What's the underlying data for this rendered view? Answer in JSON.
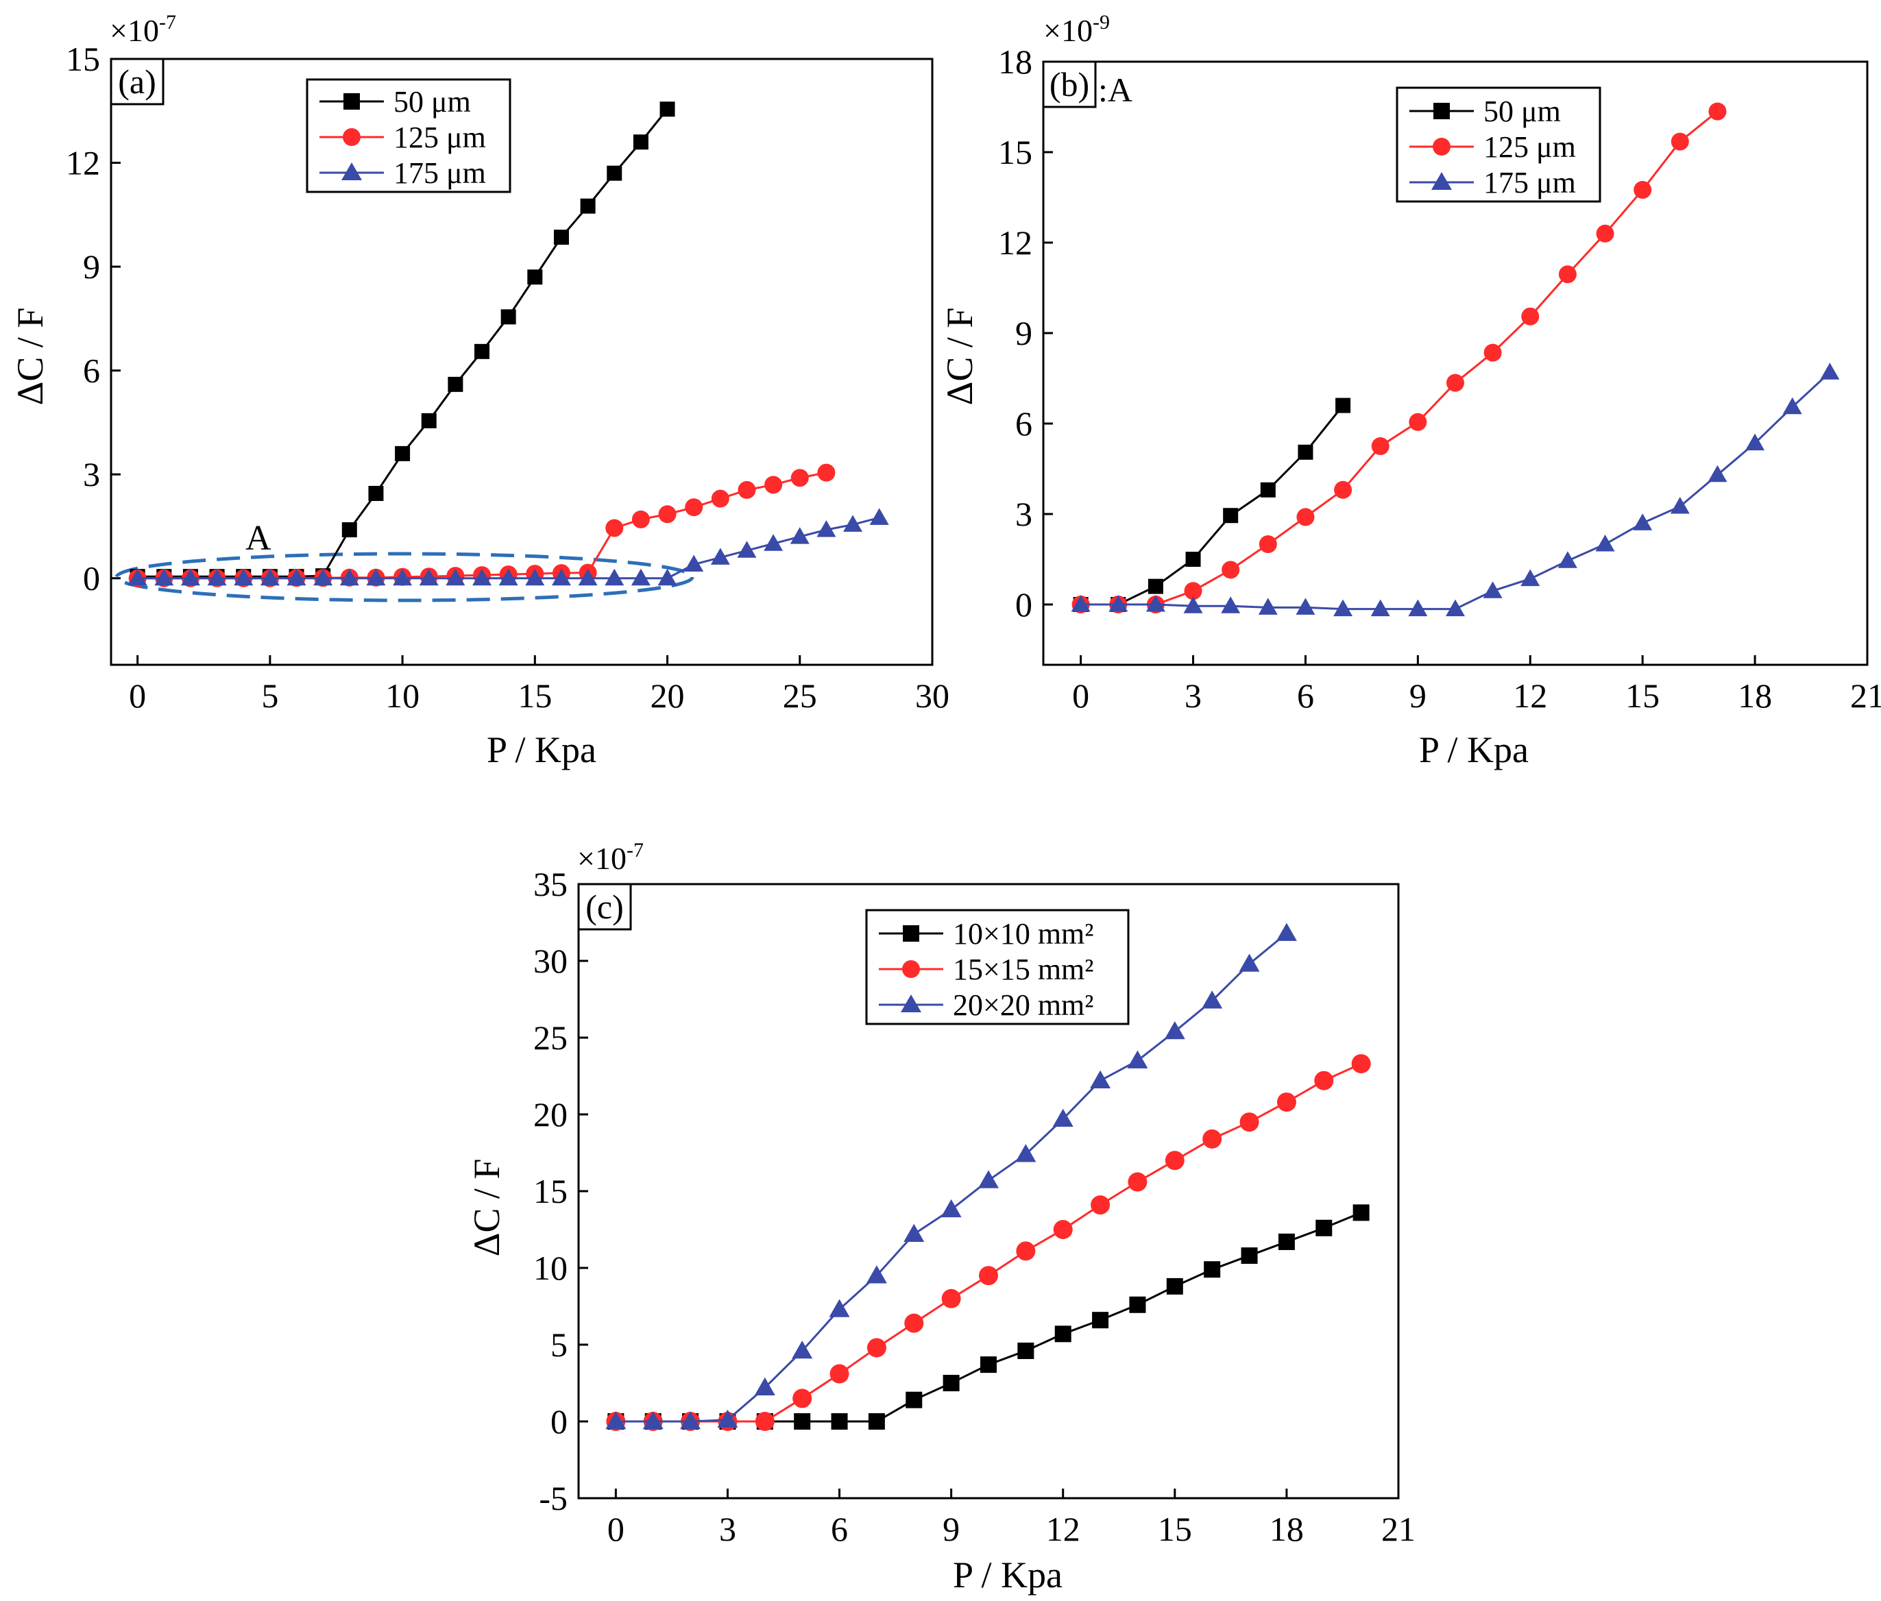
{
  "chart_data": [
    {
      "id": "a",
      "type": "line",
      "panel_label": "(a)",
      "xlabel": "P / Kpa",
      "ylabel": "ΔC / F",
      "y_multiplier_base": "×10",
      "y_multiplier_exp": "-7",
      "xlim": [
        -1,
        30
      ],
      "ylim": [
        -2.5,
        15
      ],
      "xticks": [
        0,
        5,
        10,
        15,
        20,
        25,
        30
      ],
      "yticks": [
        0,
        3,
        6,
        9,
        12,
        15
      ],
      "annotation": "A",
      "legend": {
        "position": "top-center"
      },
      "series": [
        {
          "name": "50 μm",
          "color": "#000000",
          "marker": "square",
          "x": [
            0,
            1,
            2,
            3,
            4,
            5,
            6,
            7,
            8,
            9,
            10,
            11,
            12,
            13,
            14,
            15,
            16,
            17,
            18,
            19,
            20
          ],
          "y": [
            0.05,
            0.05,
            0.05,
            0.05,
            0.05,
            0.05,
            0.05,
            0.07,
            1.4,
            2.45,
            3.6,
            4.55,
            5.6,
            6.55,
            7.55,
            8.7,
            9.85,
            10.75,
            11.7,
            12.6,
            13.55
          ]
        },
        {
          "name": "125 μm",
          "color": "#ff2a2a",
          "marker": "circle",
          "x": [
            0,
            1,
            2,
            3,
            4,
            5,
            6,
            7,
            8,
            9,
            10,
            11,
            12,
            13,
            14,
            15,
            16,
            17,
            18,
            19,
            20,
            21,
            22,
            23,
            24,
            25,
            26
          ],
          "y": [
            0.0,
            0.0,
            0.0,
            0.0,
            0.0,
            0.0,
            0.01,
            0.01,
            0.02,
            0.02,
            0.04,
            0.05,
            0.07,
            0.09,
            0.11,
            0.13,
            0.15,
            0.16,
            1.45,
            1.7,
            1.85,
            2.05,
            2.3,
            2.55,
            2.7,
            2.9,
            3.05
          ]
        },
        {
          "name": "175 μm",
          "color": "#3a4aa8",
          "marker": "triangle",
          "x": [
            0,
            1,
            2,
            3,
            4,
            5,
            6,
            7,
            8,
            9,
            10,
            11,
            12,
            13,
            14,
            15,
            16,
            17,
            18,
            19,
            20,
            21,
            22,
            23,
            24,
            25,
            26,
            27,
            28
          ],
          "y": [
            0.0,
            0.0,
            0.0,
            0.0,
            0.0,
            0.0,
            0.0,
            0.0,
            0.0,
            0.0,
            0.0,
            0.0,
            0.0,
            0.0,
            0.0,
            0.0,
            0.0,
            0.0,
            0.0,
            0.0,
            0.0,
            0.4,
            0.6,
            0.8,
            1.0,
            1.2,
            1.4,
            1.55,
            1.75
          ]
        }
      ]
    },
    {
      "id": "b",
      "type": "line",
      "panel_label": "(b)",
      "panel_suffix": ":A",
      "xlabel": "P / Kpa",
      "ylabel": "ΔC / F",
      "y_multiplier_base": "×10",
      "y_multiplier_exp": "-9",
      "xlim": [
        -1,
        21
      ],
      "ylim": [
        -2,
        18
      ],
      "xticks": [
        0,
        3,
        6,
        9,
        12,
        15,
        18,
        21
      ],
      "yticks": [
        0,
        3,
        6,
        9,
        12,
        15,
        18
      ],
      "legend": {
        "position": "top-right"
      },
      "series": [
        {
          "name": "50 μm",
          "color": "#000000",
          "marker": "square",
          "x": [
            0,
            1,
            2,
            3,
            4,
            5,
            6,
            7
          ],
          "y": [
            0.0,
            0.0,
            0.6,
            1.5,
            2.95,
            3.8,
            5.05,
            6.6
          ]
        },
        {
          "name": "125 μm",
          "color": "#ff2a2a",
          "marker": "circle",
          "x": [
            0,
            1,
            2,
            3,
            4,
            5,
            6,
            7,
            8,
            9,
            10,
            11,
            12,
            13,
            14,
            15,
            16,
            17
          ],
          "y": [
            0.0,
            0.0,
            0.0,
            0.45,
            1.15,
            2.0,
            2.9,
            3.8,
            5.25,
            6.05,
            7.35,
            8.35,
            9.55,
            10.95,
            12.3,
            13.75,
            15.35,
            16.35
          ]
        },
        {
          "name": "175 μm",
          "color": "#3a4aa8",
          "marker": "triangle",
          "x": [
            0,
            1,
            2,
            3,
            4,
            5,
            6,
            7,
            8,
            9,
            10,
            11,
            12,
            13,
            14,
            15,
            16,
            17,
            18,
            19,
            20
          ],
          "y": [
            0.0,
            0.0,
            0.0,
            -0.05,
            -0.05,
            -0.1,
            -0.1,
            -0.15,
            -0.15,
            -0.15,
            -0.15,
            0.45,
            0.85,
            1.45,
            2.0,
            2.7,
            3.25,
            4.3,
            5.35,
            6.55,
            7.7
          ]
        }
      ]
    },
    {
      "id": "c",
      "type": "line",
      "panel_label": "(c)",
      "xlabel": "P / Kpa",
      "ylabel": "ΔC / F",
      "y_multiplier_base": "×10",
      "y_multiplier_exp": "-7",
      "xlim": [
        -1,
        21
      ],
      "ylim": [
        -5,
        35
      ],
      "xticks": [
        0,
        3,
        6,
        9,
        12,
        15,
        18,
        21
      ],
      "yticks": [
        -5,
        0,
        5,
        10,
        15,
        20,
        25,
        30,
        35
      ],
      "legend": {
        "position": "top-center"
      },
      "series": [
        {
          "name": "10×10 mm²",
          "color": "#000000",
          "marker": "square",
          "x": [
            0,
            1,
            2,
            3,
            4,
            5,
            6,
            7,
            8,
            9,
            10,
            11,
            12,
            13,
            14,
            15,
            16,
            17,
            18,
            19,
            20
          ],
          "y": [
            0,
            0,
            0,
            0,
            0,
            0,
            0,
            0,
            1.4,
            2.5,
            3.7,
            4.6,
            5.7,
            6.6,
            7.6,
            8.8,
            9.9,
            10.8,
            11.7,
            12.6,
            13.6
          ]
        },
        {
          "name": "15×15 mm²",
          "color": "#ff2a2a",
          "marker": "circle",
          "x": [
            0,
            1,
            2,
            3,
            4,
            5,
            6,
            7,
            8,
            9,
            10,
            11,
            12,
            13,
            14,
            15,
            16,
            17,
            18,
            19,
            20
          ],
          "y": [
            0,
            0,
            0,
            0,
            0,
            1.5,
            3.1,
            4.8,
            6.4,
            8.0,
            9.5,
            11.1,
            12.5,
            14.1,
            15.6,
            17.0,
            18.4,
            19.5,
            20.8,
            22.2,
            23.3
          ]
        },
        {
          "name": "20×20 mm²",
          "color": "#3a4aa8",
          "marker": "triangle",
          "x": [
            0,
            1,
            2,
            3,
            4,
            5,
            6,
            7,
            8,
            9,
            10,
            11,
            12,
            13,
            14,
            15,
            16,
            17,
            18
          ],
          "y": [
            0,
            0,
            0,
            0.1,
            2.2,
            4.6,
            7.3,
            9.5,
            12.2,
            13.8,
            15.7,
            17.4,
            19.7,
            22.2,
            23.5,
            25.4,
            27.4,
            29.8,
            31.8
          ]
        }
      ]
    }
  ]
}
